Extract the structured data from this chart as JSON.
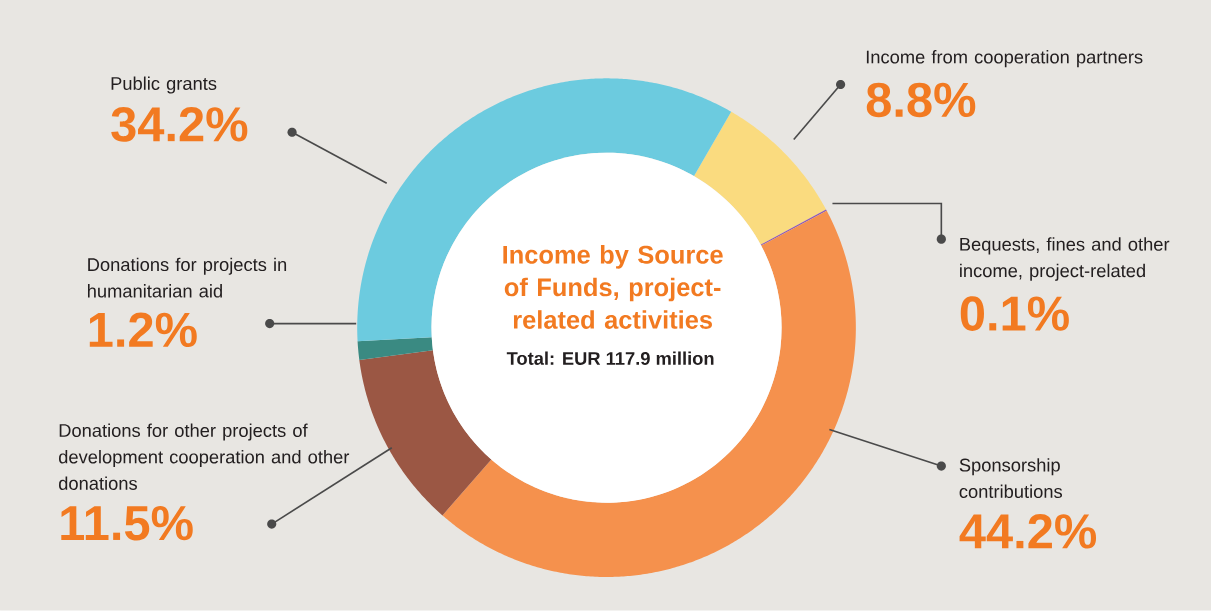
{
  "chart_data": {
    "type": "donut",
    "title": "Income by Source of Funds, project-related activities",
    "subtitle": "Total: EUR 117.9 million",
    "categories": [
      "Income from cooperation partners",
      "Bequests, fines and other income, project-related",
      "Sponsorship contributions",
      "Donations for other projects of development cooperation and other donations",
      "Donations for projects in humanitarian aid",
      "Public grants"
    ],
    "values": [
      8.8,
      0.1,
      44.2,
      11.5,
      1.2,
      34.2
    ],
    "value_labels": [
      "8.8%",
      "0.1%",
      "44.2%",
      "11.5%",
      "1.2%",
      "34.2%"
    ],
    "colors": [
      "#fadb7f",
      "#8e5bb5",
      "#f5914d",
      "#9b5744",
      "#3a8a82",
      "#6ccbdf"
    ]
  }
}
